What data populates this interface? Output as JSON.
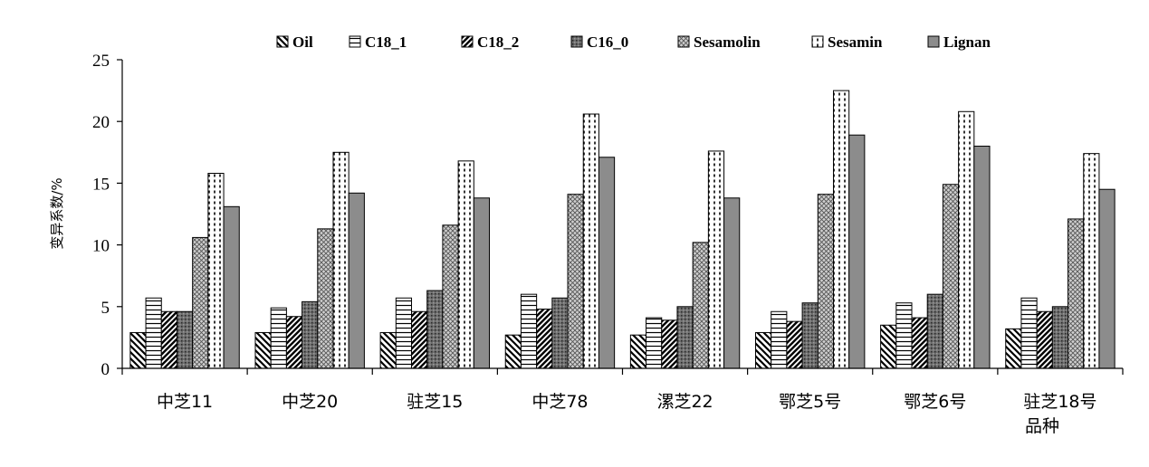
{
  "chart_data": {
    "type": "bar",
    "title": "",
    "xlabel": "品种",
    "ylabel": "变异系数/%",
    "ylim": [
      0,
      25
    ],
    "yticks": [
      0,
      5,
      10,
      15,
      20,
      25
    ],
    "grid": false,
    "legend_position": "top",
    "categories": [
      "中芝11",
      "中芝20",
      "驻芝15",
      "中芝78",
      "漯芝22",
      "鄂芝5号",
      "鄂芝6号",
      "驻芝18号"
    ],
    "series": [
      {
        "name": "Oil",
        "pattern": "diag-back",
        "fill": "#ffffff",
        "values": [
          2.9,
          2.9,
          2.9,
          2.7,
          2.7,
          2.9,
          3.5,
          3.2
        ]
      },
      {
        "name": "C18_1",
        "pattern": "horizontal",
        "fill": "#ffffff",
        "values": [
          5.7,
          4.9,
          5.7,
          6.0,
          4.1,
          4.6,
          5.3,
          5.7
        ]
      },
      {
        "name": "C18_2",
        "pattern": "diag-forward",
        "fill": "#ffffff",
        "values": [
          4.6,
          4.2,
          4.6,
          4.8,
          3.9,
          3.8,
          4.1,
          4.6
        ]
      },
      {
        "name": "C16_0",
        "pattern": "dots-dark",
        "fill": "#777777",
        "values": [
          4.6,
          5.4,
          6.3,
          5.7,
          5.0,
          5.3,
          6.0,
          5.0
        ]
      },
      {
        "name": "Sesamolin",
        "pattern": "crosshatch",
        "fill": "#c8c8c8",
        "values": [
          10.6,
          11.3,
          11.6,
          14.1,
          10.2,
          14.1,
          14.9,
          12.1
        ]
      },
      {
        "name": "Sesamin",
        "pattern": "vertical-dash",
        "fill": "#ffffff",
        "values": [
          15.8,
          17.5,
          16.8,
          20.6,
          17.6,
          22.5,
          20.8,
          17.4
        ]
      },
      {
        "name": "Lignan",
        "pattern": "solid",
        "fill": "#8c8c8c",
        "values": [
          13.1,
          14.2,
          13.8,
          17.1,
          13.8,
          18.9,
          18.0,
          14.5
        ]
      }
    ]
  }
}
